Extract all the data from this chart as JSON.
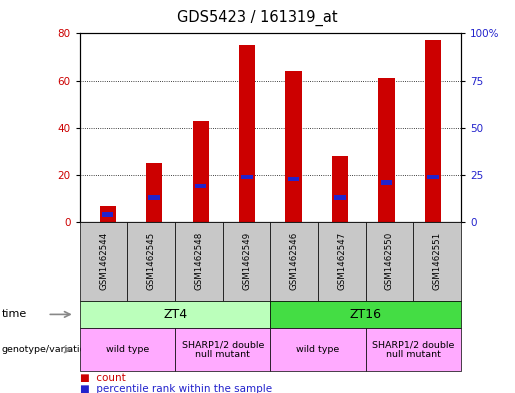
{
  "title": "GDS5423 / 161319_at",
  "samples": [
    "GSM1462544",
    "GSM1462545",
    "GSM1462548",
    "GSM1462549",
    "GSM1462546",
    "GSM1462547",
    "GSM1462550",
    "GSM1462551"
  ],
  "counts": [
    7,
    25,
    43,
    75,
    64,
    28,
    61,
    77
  ],
  "percentile_ranks": [
    4,
    13,
    19,
    24,
    23,
    13,
    21,
    24
  ],
  "bar_color": "#CC0000",
  "percentile_color": "#2222CC",
  "ylim_left": [
    0,
    80
  ],
  "ylim_right": [
    0,
    100
  ],
  "yticks_left": [
    0,
    20,
    40,
    60,
    80
  ],
  "yticks_right": [
    0,
    25,
    50,
    75,
    100
  ],
  "yticklabels_right": [
    "0",
    "25",
    "50",
    "75",
    "100%"
  ],
  "bg_color": "#FFFFFF",
  "time_zt4_color": "#BBFFBB",
  "time_zt16_color": "#44DD44",
  "genotype_color": "#FFAAFF",
  "sample_bg_color": "#C8C8C8",
  "axis_color_left": "#CC0000",
  "axis_color_right": "#2222CC",
  "bar_width": 0.35,
  "legend_count_label": "count",
  "legend_percentile_label": "percentile rank within the sample"
}
